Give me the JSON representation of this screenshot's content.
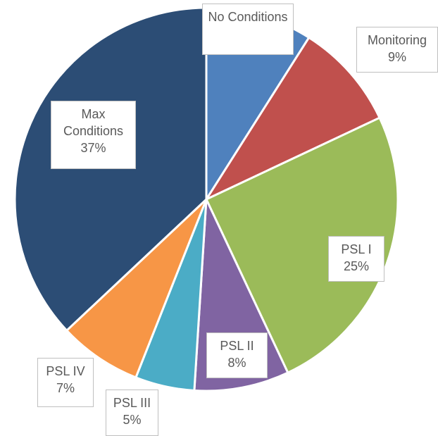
{
  "chart_data": {
    "type": "pie",
    "categories": [
      "No Conditions",
      "Monitoring",
      "PSL I",
      "PSL II",
      "PSL III",
      "PSL IV",
      "Max Conditions"
    ],
    "values": [
      9,
      9,
      25,
      8,
      5,
      7,
      37
    ],
    "value_labels": [
      null,
      "9%",
      "25%",
      "8%",
      "5%",
      "7%",
      "37%"
    ],
    "colors": [
      "#4f81bd",
      "#c0504d",
      "#9bbb59",
      "#8064a2",
      "#4bacc6",
      "#f79646",
      "#2c4d75"
    ]
  }
}
